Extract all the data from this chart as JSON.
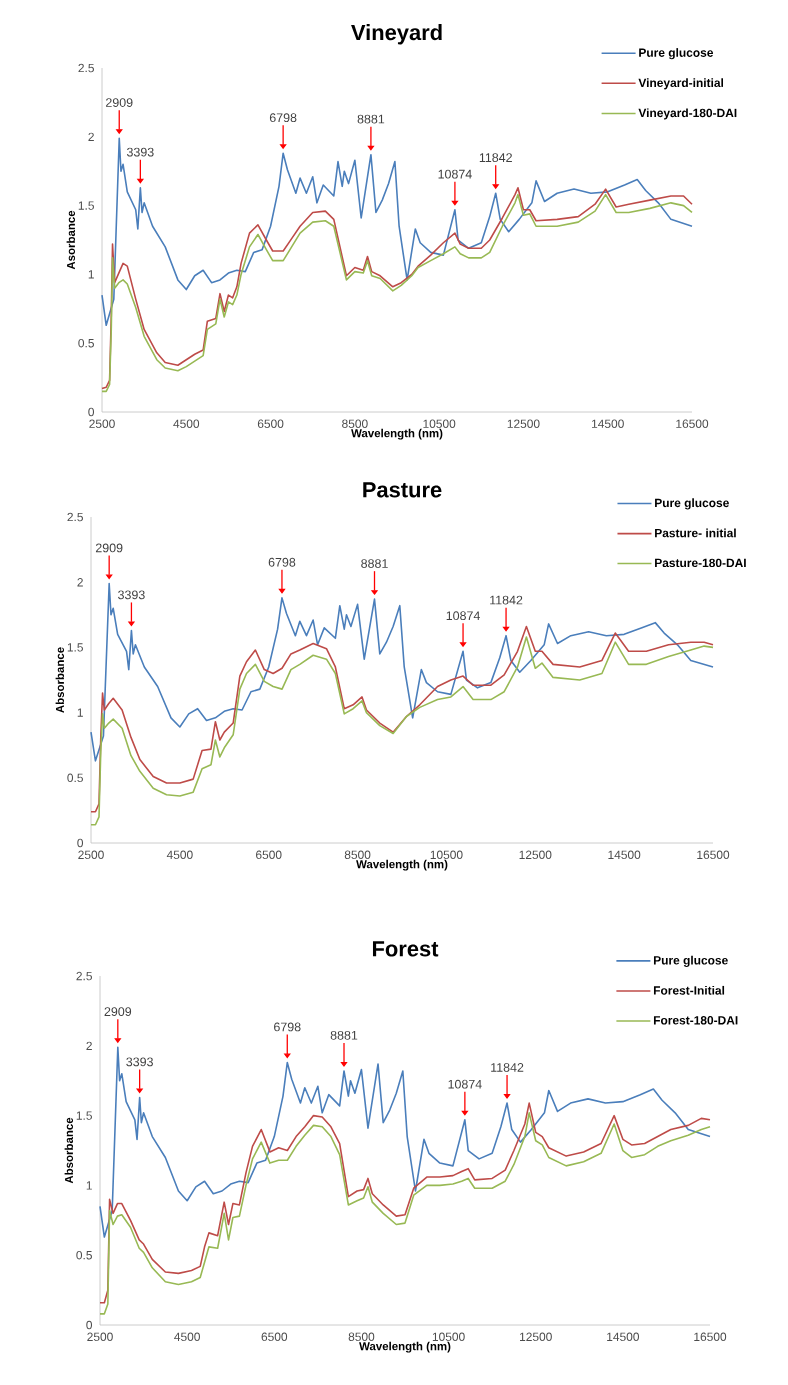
{
  "chart_data": [
    {
      "type": "line",
      "title": "Vineyard",
      "xlabel": "Wavelength (nm)",
      "ylabel": "Asorbance",
      "xlim": [
        2500,
        16500
      ],
      "ylim": [
        0,
        2.5
      ],
      "xticks": [
        2500,
        4500,
        6500,
        8500,
        10500,
        12500,
        14500,
        16500
      ],
      "yticks": [
        0,
        0.5,
        1,
        1.5,
        2,
        2.5
      ],
      "legend": "top right",
      "annotations": [
        {
          "text": "2909",
          "x": 2909,
          "y": 1.99
        },
        {
          "text": "3393",
          "x": 3410,
          "y": 1.63
        },
        {
          "text": "6798",
          "x": 6798,
          "y": 1.88
        },
        {
          "text": "8881",
          "x": 8881,
          "y": 1.87
        },
        {
          "text": "10874",
          "x": 10874,
          "y": 1.47
        },
        {
          "text": "11842",
          "x": 11842,
          "y": 1.59
        }
      ],
      "series": [
        {
          "name": "Pure glucose",
          "color": "#4a7ebb",
          "x": [
            2500,
            2600,
            2780,
            2909,
            2950,
            3000,
            3100,
            3300,
            3350,
            3410,
            3450,
            3500,
            3700,
            4000,
            4300,
            4500,
            4700,
            4900,
            5100,
            5300,
            5500,
            5700,
            5900,
            6100,
            6300,
            6500,
            6700,
            6798,
            6900,
            7100,
            7200,
            7350,
            7500,
            7600,
            7750,
            8000,
            8100,
            8200,
            8250,
            8350,
            8500,
            8650,
            8881,
            9000,
            9150,
            9300,
            9450,
            9550,
            9740,
            9935,
            10050,
            10300,
            10600,
            10874,
            10950,
            11200,
            11500,
            11700,
            11842,
            11950,
            12150,
            12400,
            12700,
            12800,
            13000,
            13300,
            13700,
            14100,
            14500,
            14900,
            15200,
            15400,
            15700,
            16000,
            16500
          ],
          "values": [
            0.85,
            0.63,
            0.82,
            1.99,
            1.75,
            1.8,
            1.6,
            1.47,
            1.33,
            1.63,
            1.45,
            1.52,
            1.35,
            1.2,
            0.96,
            0.89,
            0.99,
            1.03,
            0.94,
            0.96,
            1.01,
            1.03,
            1.02,
            1.16,
            1.18,
            1.35,
            1.64,
            1.88,
            1.76,
            1.59,
            1.7,
            1.59,
            1.71,
            1.52,
            1.65,
            1.57,
            1.82,
            1.64,
            1.75,
            1.66,
            1.83,
            1.41,
            1.87,
            1.45,
            1.54,
            1.66,
            1.82,
            1.35,
            0.96,
            1.33,
            1.23,
            1.16,
            1.14,
            1.47,
            1.25,
            1.19,
            1.23,
            1.42,
            1.59,
            1.4,
            1.31,
            1.4,
            1.52,
            1.68,
            1.53,
            1.59,
            1.62,
            1.59,
            1.6,
            1.65,
            1.69,
            1.61,
            1.52,
            1.4,
            1.35
          ]
        },
        {
          "name": "Vineyard-initial",
          "color": "#be4b48",
          "x": [
            2500,
            2600,
            2680,
            2720,
            2750,
            2800,
            2900,
            3000,
            3100,
            3300,
            3500,
            3800,
            4000,
            4300,
            4500,
            4700,
            4900,
            5000,
            5200,
            5300,
            5400,
            5500,
            5600,
            5700,
            5800,
            6000,
            6200,
            6400,
            6550,
            6800,
            7000,
            7200,
            7500,
            7800,
            8000,
            8300,
            8500,
            8700,
            8800,
            8900,
            9100,
            9400,
            9600,
            9850,
            10000,
            10300,
            10600,
            10874,
            11000,
            11200,
            11500,
            11700,
            12000,
            12300,
            12370,
            12500,
            12650,
            12800,
            13300,
            13800,
            14200,
            14450,
            14700,
            15000,
            15500,
            16000,
            16300,
            16500
          ],
          "values": [
            0.17,
            0.18,
            0.23,
            0.7,
            1.22,
            0.94,
            1.01,
            1.08,
            1.06,
            0.82,
            0.6,
            0.43,
            0.36,
            0.34,
            0.38,
            0.42,
            0.45,
            0.66,
            0.68,
            0.86,
            0.73,
            0.85,
            0.83,
            0.91,
            1.08,
            1.3,
            1.36,
            1.25,
            1.17,
            1.17,
            1.26,
            1.35,
            1.45,
            1.46,
            1.4,
            0.99,
            1.05,
            1.03,
            1.13,
            1.02,
            0.99,
            0.91,
            0.94,
            1.0,
            1.06,
            1.14,
            1.23,
            1.3,
            1.22,
            1.19,
            1.19,
            1.25,
            1.41,
            1.58,
            1.63,
            1.47,
            1.47,
            1.39,
            1.4,
            1.42,
            1.51,
            1.62,
            1.49,
            1.51,
            1.54,
            1.57,
            1.57,
            1.51
          ]
        },
        {
          "name": "Vineyard-180-DAI",
          "color": "#98b954",
          "x": [
            2500,
            2600,
            2680,
            2720,
            2750,
            2800,
            2900,
            3000,
            3100,
            3300,
            3500,
            3800,
            4000,
            4300,
            4500,
            4700,
            4900,
            5000,
            5200,
            5300,
            5400,
            5500,
            5600,
            5700,
            5800,
            6000,
            6200,
            6400,
            6550,
            6800,
            7000,
            7200,
            7500,
            7800,
            8000,
            8300,
            8500,
            8700,
            8800,
            8900,
            9100,
            9400,
            9600,
            9850,
            10000,
            10300,
            10600,
            10874,
            11000,
            11200,
            11500,
            11700,
            12000,
            12300,
            12370,
            12500,
            12650,
            12800,
            13300,
            13800,
            14200,
            14450,
            14700,
            15000,
            15500,
            16000,
            16300,
            16500
          ],
          "values": [
            0.15,
            0.15,
            0.2,
            0.6,
            1.12,
            0.9,
            0.94,
            0.96,
            0.93,
            0.76,
            0.55,
            0.38,
            0.32,
            0.3,
            0.33,
            0.37,
            0.41,
            0.6,
            0.64,
            0.82,
            0.69,
            0.8,
            0.78,
            0.85,
            1.0,
            1.2,
            1.29,
            1.18,
            1.1,
            1.1,
            1.2,
            1.3,
            1.38,
            1.39,
            1.35,
            0.96,
            1.02,
            1.01,
            1.1,
            0.99,
            0.97,
            0.88,
            0.92,
            0.99,
            1.05,
            1.1,
            1.15,
            1.2,
            1.15,
            1.12,
            1.12,
            1.16,
            1.35,
            1.52,
            1.58,
            1.43,
            1.44,
            1.35,
            1.35,
            1.38,
            1.46,
            1.58,
            1.45,
            1.45,
            1.48,
            1.52,
            1.5,
            1.45
          ]
        }
      ]
    },
    {
      "type": "line",
      "title": "Pasture",
      "xlabel": "Wavelength (nm)",
      "ylabel": "Absorbance",
      "xlim": [
        2500,
        16500
      ],
      "ylim": [
        0,
        2.5
      ],
      "xticks": [
        2500,
        4500,
        6500,
        8500,
        10500,
        12500,
        14500,
        16500
      ],
      "yticks": [
        0,
        0.5,
        1,
        1.5,
        2,
        2.5
      ],
      "legend": "top right",
      "annotations": [
        {
          "text": "2909",
          "x": 2909,
          "y": 1.99
        },
        {
          "text": "3393",
          "x": 3410,
          "y": 1.63
        },
        {
          "text": "6798",
          "x": 6798,
          "y": 1.88
        },
        {
          "text": "8881",
          "x": 8881,
          "y": 1.87
        },
        {
          "text": "10874",
          "x": 10874,
          "y": 1.47
        },
        {
          "text": "11842",
          "x": 11842,
          "y": 1.59
        }
      ],
      "series": [
        {
          "name": "Pure glucose",
          "color": "#4a7ebb",
          "x": [
            2500,
            2600,
            2780,
            2909,
            2950,
            3000,
            3100,
            3300,
            3350,
            3410,
            3450,
            3500,
            3700,
            4000,
            4300,
            4500,
            4700,
            4900,
            5100,
            5300,
            5500,
            5700,
            5900,
            6100,
            6300,
            6500,
            6700,
            6798,
            6900,
            7100,
            7200,
            7350,
            7500,
            7600,
            7750,
            8000,
            8100,
            8200,
            8250,
            8350,
            8500,
            8650,
            8881,
            9000,
            9150,
            9300,
            9450,
            9550,
            9740,
            9935,
            10050,
            10300,
            10600,
            10874,
            10950,
            11200,
            11500,
            11700,
            11842,
            11950,
            12150,
            12400,
            12700,
            12800,
            13000,
            13300,
            13700,
            14100,
            14500,
            14900,
            15200,
            15400,
            15700,
            16000,
            16500
          ],
          "values": [
            0.85,
            0.63,
            0.82,
            1.99,
            1.75,
            1.8,
            1.6,
            1.47,
            1.33,
            1.63,
            1.45,
            1.52,
            1.35,
            1.2,
            0.96,
            0.89,
            0.99,
            1.03,
            0.94,
            0.96,
            1.01,
            1.03,
            1.02,
            1.16,
            1.18,
            1.35,
            1.64,
            1.88,
            1.76,
            1.59,
            1.7,
            1.59,
            1.71,
            1.52,
            1.65,
            1.57,
            1.82,
            1.64,
            1.75,
            1.66,
            1.83,
            1.41,
            1.87,
            1.45,
            1.54,
            1.66,
            1.82,
            1.35,
            0.96,
            1.33,
            1.23,
            1.16,
            1.14,
            1.47,
            1.25,
            1.19,
            1.23,
            1.42,
            1.59,
            1.4,
            1.31,
            1.4,
            1.52,
            1.68,
            1.53,
            1.59,
            1.62,
            1.59,
            1.6,
            1.65,
            1.69,
            1.61,
            1.52,
            1.4,
            1.35
          ]
        },
        {
          "name": "Pasture- initial",
          "color": "#be4b48",
          "x": [
            2500,
            2600,
            2680,
            2720,
            2760,
            2800,
            2900,
            3000,
            3200,
            3400,
            3600,
            3900,
            4200,
            4500,
            4800,
            5000,
            5200,
            5300,
            5400,
            5500,
            5700,
            5850,
            6000,
            6200,
            6400,
            6600,
            6800,
            7000,
            7200,
            7500,
            7800,
            8000,
            8200,
            8400,
            8600,
            8700,
            9000,
            9300,
            9600,
            9900,
            10300,
            10600,
            10874,
            11100,
            11500,
            11800,
            12100,
            12300,
            12500,
            12650,
            12900,
            13500,
            14000,
            14300,
            14600,
            15000,
            15500,
            16000,
            16300,
            16500
          ],
          "values": [
            0.24,
            0.24,
            0.3,
            0.81,
            1.15,
            1.02,
            1.07,
            1.11,
            1.02,
            0.81,
            0.64,
            0.51,
            0.46,
            0.46,
            0.49,
            0.71,
            0.72,
            0.93,
            0.79,
            0.85,
            0.92,
            1.28,
            1.39,
            1.48,
            1.33,
            1.3,
            1.34,
            1.45,
            1.48,
            1.53,
            1.49,
            1.35,
            1.03,
            1.06,
            1.12,
            1.02,
            0.92,
            0.85,
            0.97,
            1.06,
            1.2,
            1.25,
            1.28,
            1.21,
            1.21,
            1.29,
            1.47,
            1.66,
            1.47,
            1.47,
            1.37,
            1.35,
            1.4,
            1.61,
            1.47,
            1.47,
            1.52,
            1.54,
            1.54,
            1.52
          ]
        },
        {
          "name": "Pasture-180-DAI",
          "color": "#98b954",
          "x": [
            2500,
            2600,
            2680,
            2720,
            2760,
            2800,
            2900,
            3000,
            3200,
            3400,
            3600,
            3900,
            4200,
            4500,
            4800,
            5000,
            5200,
            5300,
            5400,
            5500,
            5700,
            5850,
            6000,
            6200,
            6400,
            6600,
            6800,
            7000,
            7200,
            7500,
            7800,
            8000,
            8200,
            8400,
            8600,
            8700,
            9000,
            9300,
            9600,
            9900,
            10300,
            10600,
            10874,
            11100,
            11500,
            11800,
            12100,
            12300,
            12500,
            12650,
            12900,
            13500,
            14000,
            14300,
            14600,
            15000,
            15500,
            16000,
            16300,
            16500
          ],
          "values": [
            0.14,
            0.14,
            0.2,
            0.7,
            0.99,
            0.88,
            0.92,
            0.95,
            0.88,
            0.67,
            0.55,
            0.42,
            0.37,
            0.36,
            0.39,
            0.57,
            0.6,
            0.79,
            0.66,
            0.73,
            0.83,
            1.18,
            1.3,
            1.37,
            1.24,
            1.2,
            1.18,
            1.33,
            1.37,
            1.44,
            1.41,
            1.3,
            0.99,
            1.03,
            1.09,
            1.0,
            0.9,
            0.84,
            0.97,
            1.04,
            1.1,
            1.12,
            1.2,
            1.1,
            1.1,
            1.16,
            1.35,
            1.58,
            1.34,
            1.38,
            1.27,
            1.25,
            1.3,
            1.54,
            1.37,
            1.37,
            1.43,
            1.48,
            1.51,
            1.5
          ]
        }
      ]
    },
    {
      "type": "line",
      "title": "Forest",
      "xlabel": "Wavelength (nm)",
      "ylabel": "Absorbance",
      "xlim": [
        2500,
        16500
      ],
      "ylim": [
        0,
        2.5
      ],
      "xticks": [
        2500,
        4500,
        6500,
        8500,
        10500,
        12500,
        14500,
        16500
      ],
      "yticks": [
        0,
        0.5,
        1,
        1.5,
        2,
        2.5
      ],
      "legend": "top right",
      "annotations": [
        {
          "text": "2909",
          "x": 2909,
          "y": 1.99
        },
        {
          "text": "3393",
          "x": 3410,
          "y": 1.63
        },
        {
          "text": "6798",
          "x": 6798,
          "y": 1.88
        },
        {
          "text": "8881",
          "x": 8100,
          "y": 1.82
        },
        {
          "text": "10874",
          "x": 10874,
          "y": 1.47
        },
        {
          "text": "11842",
          "x": 11842,
          "y": 1.59
        }
      ],
      "series": [
        {
          "name": "Pure glucose",
          "color": "#4a7ebb",
          "x": [
            2500,
            2600,
            2780,
            2909,
            2950,
            3000,
            3100,
            3300,
            3350,
            3410,
            3450,
            3500,
            3700,
            4000,
            4300,
            4500,
            4700,
            4900,
            5100,
            5300,
            5500,
            5700,
            5900,
            6100,
            6300,
            6500,
            6700,
            6798,
            6900,
            7100,
            7200,
            7350,
            7500,
            7600,
            7750,
            8000,
            8100,
            8200,
            8250,
            8350,
            8500,
            8650,
            8881,
            9000,
            9150,
            9300,
            9450,
            9550,
            9740,
            9935,
            10050,
            10300,
            10600,
            10874,
            10950,
            11200,
            11500,
            11700,
            11842,
            11950,
            12150,
            12400,
            12700,
            12800,
            13000,
            13300,
            13700,
            14100,
            14500,
            14900,
            15200,
            15400,
            15700,
            16000,
            16500
          ],
          "values": [
            0.85,
            0.63,
            0.82,
            1.99,
            1.75,
            1.8,
            1.6,
            1.47,
            1.33,
            1.63,
            1.45,
            1.52,
            1.35,
            1.2,
            0.96,
            0.89,
            0.99,
            1.03,
            0.94,
            0.96,
            1.01,
            1.03,
            1.02,
            1.16,
            1.18,
            1.35,
            1.64,
            1.88,
            1.76,
            1.59,
            1.7,
            1.59,
            1.71,
            1.52,
            1.65,
            1.57,
            1.82,
            1.64,
            1.75,
            1.66,
            1.83,
            1.41,
            1.87,
            1.45,
            1.54,
            1.66,
            1.82,
            1.35,
            0.96,
            1.33,
            1.23,
            1.16,
            1.14,
            1.47,
            1.25,
            1.19,
            1.23,
            1.42,
            1.59,
            1.4,
            1.31,
            1.4,
            1.52,
            1.68,
            1.53,
            1.59,
            1.62,
            1.59,
            1.6,
            1.65,
            1.69,
            1.61,
            1.52,
            1.4,
            1.35
          ]
        },
        {
          "name": "Forest-Initial",
          "color": "#be4b48",
          "x": [
            2500,
            2600,
            2680,
            2720,
            2800,
            2900,
            3000,
            3200,
            3400,
            3500,
            3700,
            4000,
            4300,
            4600,
            4800,
            4900,
            5000,
            5200,
            5350,
            5450,
            5550,
            5700,
            5850,
            6000,
            6200,
            6400,
            6600,
            6800,
            7000,
            7200,
            7400,
            7600,
            7800,
            8000,
            8200,
            8400,
            8550,
            8650,
            8750,
            9000,
            9300,
            9500,
            9700,
            10000,
            10300,
            10600,
            10800,
            10950,
            11100,
            11500,
            11800,
            12000,
            12250,
            12350,
            12500,
            12650,
            12800,
            13200,
            13600,
            14000,
            14300,
            14500,
            14700,
            15000,
            15300,
            15600,
            16000,
            16300,
            16500
          ],
          "values": [
            0.16,
            0.16,
            0.25,
            0.9,
            0.8,
            0.87,
            0.87,
            0.75,
            0.61,
            0.58,
            0.47,
            0.38,
            0.37,
            0.39,
            0.42,
            0.56,
            0.66,
            0.64,
            0.88,
            0.72,
            0.87,
            0.86,
            1.09,
            1.28,
            1.4,
            1.24,
            1.27,
            1.25,
            1.35,
            1.42,
            1.5,
            1.49,
            1.42,
            1.3,
            0.92,
            0.96,
            0.97,
            1.05,
            0.94,
            0.86,
            0.78,
            0.79,
            0.98,
            1.06,
            1.06,
            1.07,
            1.1,
            1.12,
            1.04,
            1.05,
            1.11,
            1.25,
            1.44,
            1.59,
            1.38,
            1.35,
            1.27,
            1.21,
            1.24,
            1.3,
            1.5,
            1.33,
            1.29,
            1.3,
            1.35,
            1.4,
            1.43,
            1.48,
            1.47
          ]
        },
        {
          "name": "Forest-180-DAI",
          "color": "#98b954",
          "x": [
            2500,
            2600,
            2680,
            2720,
            2800,
            2900,
            3000,
            3200,
            3400,
            3500,
            3700,
            4000,
            4300,
            4600,
            4800,
            4900,
            5000,
            5200,
            5350,
            5450,
            5550,
            5700,
            5850,
            6000,
            6200,
            6400,
            6600,
            6800,
            7000,
            7200,
            7400,
            7600,
            7800,
            8000,
            8200,
            8400,
            8550,
            8650,
            8750,
            9000,
            9300,
            9500,
            9700,
            10000,
            10300,
            10600,
            10800,
            10950,
            11100,
            11500,
            11800,
            12000,
            12250,
            12350,
            12500,
            12650,
            12800,
            13200,
            13600,
            14000,
            14300,
            14500,
            14700,
            15000,
            15300,
            15600,
            16000,
            16300,
            16500
          ],
          "values": [
            0.08,
            0.08,
            0.15,
            0.82,
            0.72,
            0.78,
            0.79,
            0.7,
            0.55,
            0.52,
            0.41,
            0.31,
            0.29,
            0.31,
            0.34,
            0.45,
            0.56,
            0.55,
            0.8,
            0.61,
            0.77,
            0.78,
            1.0,
            1.19,
            1.31,
            1.16,
            1.18,
            1.18,
            1.28,
            1.36,
            1.43,
            1.42,
            1.35,
            1.22,
            0.86,
            0.89,
            0.91,
            0.99,
            0.88,
            0.8,
            0.72,
            0.73,
            0.93,
            1.0,
            1.0,
            1.01,
            1.03,
            1.05,
            0.98,
            0.98,
            1.03,
            1.15,
            1.35,
            1.52,
            1.32,
            1.29,
            1.2,
            1.14,
            1.17,
            1.23,
            1.44,
            1.25,
            1.2,
            1.22,
            1.28,
            1.32,
            1.36,
            1.4,
            1.42
          ]
        }
      ]
    }
  ]
}
